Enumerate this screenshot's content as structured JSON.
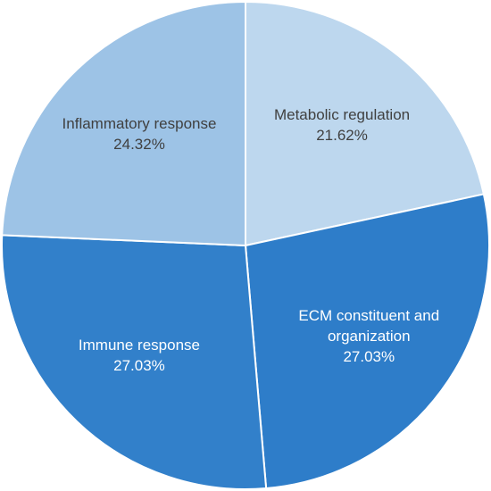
{
  "chart_data": {
    "type": "pie",
    "title": "",
    "start_angle_deg": 0,
    "direction": "clockwise",
    "slices": [
      {
        "label_lines": [
          "Metabolic regulation"
        ],
        "value_text": "21.62%",
        "value": 21.62,
        "color": "#bdd7ee",
        "text_color": "#404040"
      },
      {
        "label_lines": [
          "ECM constituent and",
          "organization"
        ],
        "value_text": "27.03%",
        "value": 27.03,
        "color": "#2e7dc9",
        "text_color": "#ffffff"
      },
      {
        "label_lines": [
          "Immune response"
        ],
        "value_text": "27.03%",
        "value": 27.03,
        "color": "#3280ca",
        "text_color": "#ffffff"
      },
      {
        "label_lines": [
          "Inflammatory response"
        ],
        "value_text": "24.32%",
        "value": 24.32,
        "color": "#9dc3e6",
        "text_color": "#404040"
      }
    ]
  }
}
